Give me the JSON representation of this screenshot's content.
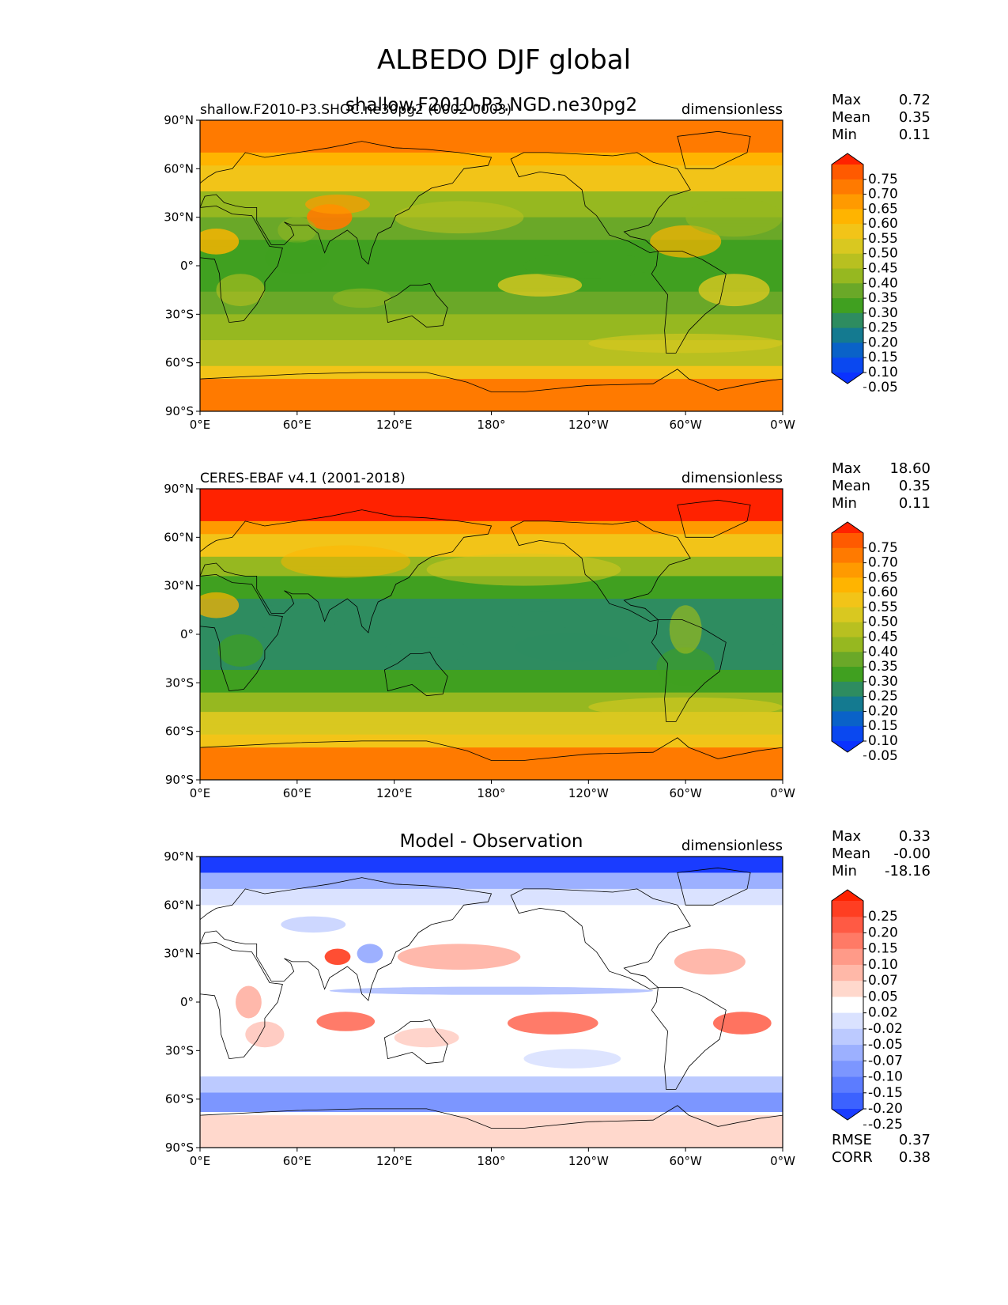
{
  "suptitle": "ALBEDO DJF global",
  "xticks": [
    "0°E",
    "60°E",
    "120°E",
    "180°",
    "120°W",
    "60°W",
    "0°W"
  ],
  "yticks": [
    "90°N",
    "60°N",
    "30°N",
    "0°",
    "30°S",
    "60°S",
    "90°S"
  ],
  "panels": [
    {
      "left_title": "shallow.F2010-P3.SHOC.ne30pg2 (0002-0003)",
      "center_title": "shallow.F2010-P3.NGD.ne30pg2",
      "right_title": "dimensionless",
      "stats": [
        {
          "label": "Max",
          "value": "0.72"
        },
        {
          "label": "Mean",
          "value": "0.35"
        },
        {
          "label": "Min",
          "value": "0.11"
        }
      ],
      "colorbar_type": "sequential",
      "colorbar_ticks": [
        "0.75",
        "0.70",
        "0.65",
        "0.60",
        "0.55",
        "0.50",
        "0.45",
        "0.40",
        "0.35",
        "0.30",
        "0.25",
        "0.20",
        "0.15",
        "0.10",
        "0.05"
      ],
      "colorbar_colors": [
        "#ff2200",
        "#ff5a00",
        "#ff7a00",
        "#ff9a00",
        "#ffb400",
        "#f2c418",
        "#d9c820",
        "#b8c020",
        "#96b820",
        "#6aa828",
        "#40a020",
        "#2e8c60",
        "#147a90",
        "#0a62c8",
        "#0a48f0",
        "#0a32ff"
      ]
    },
    {
      "left_title": "CERES-EBAF v4.1 (2001-2018)",
      "center_title": "",
      "right_title": "dimensionless",
      "stats": [
        {
          "label": "Max",
          "value": "18.60"
        },
        {
          "label": "Mean",
          "value": "0.35"
        },
        {
          "label": "Min",
          "value": "0.11"
        }
      ],
      "colorbar_type": "sequential",
      "colorbar_ticks": [
        "0.75",
        "0.70",
        "0.65",
        "0.60",
        "0.55",
        "0.50",
        "0.45",
        "0.40",
        "0.35",
        "0.30",
        "0.25",
        "0.20",
        "0.15",
        "0.10",
        "0.05"
      ],
      "colorbar_colors": [
        "#ff2200",
        "#ff5a00",
        "#ff7a00",
        "#ff9a00",
        "#ffb400",
        "#f2c418",
        "#d9c820",
        "#b8c020",
        "#96b820",
        "#6aa828",
        "#40a020",
        "#2e8c60",
        "#147a90",
        "#0a62c8",
        "#0a48f0",
        "#0a32ff"
      ]
    },
    {
      "left_title": "",
      "center_title": "Model - Observation",
      "right_title": "dimensionless",
      "stats": [
        {
          "label": "Max",
          "value": "0.33"
        },
        {
          "label": "Mean",
          "value": "-0.00"
        },
        {
          "label": "Min",
          "value": "-18.16"
        }
      ],
      "bottom_stats": [
        {
          "label": "RMSE",
          "value": "0.37"
        },
        {
          "label": "CORR",
          "value": "0.38"
        }
      ],
      "colorbar_type": "diverging",
      "colorbar_ticks": [
        "0.25",
        "0.20",
        "0.15",
        "0.10",
        "0.07",
        "0.05",
        "0.02",
        "-0.02",
        "-0.05",
        "-0.07",
        "-0.10",
        "-0.15",
        "-0.20",
        "-0.25"
      ],
      "colorbar_colors": [
        "#ff2200",
        "#ff3e22",
        "#ff5a44",
        "#ff7a66",
        "#ff9a88",
        "#ffb8a8",
        "#ffd8cc",
        "#ffffff",
        "#dae2ff",
        "#bccaff",
        "#9cb0ff",
        "#7c96ff",
        "#5c7cff",
        "#3c62ff",
        "#1a3cff"
      ]
    }
  ],
  "chart_data": [
    {
      "type": "heatmap",
      "title": "shallow.F2010-P3.NGD.ne30pg2",
      "subtitle": "shallow.F2010-P3.SHOC.ne30pg2 (0002-0003)",
      "units": "dimensionless",
      "x_range": [
        "0°E",
        "0°W"
      ],
      "y_range": [
        "90°S",
        "90°N"
      ],
      "colorbar_levels": [
        0.05,
        0.1,
        0.15,
        0.2,
        0.25,
        0.3,
        0.35,
        0.4,
        0.45,
        0.5,
        0.55,
        0.6,
        0.65,
        0.7,
        0.75
      ],
      "max": 0.72,
      "mean": 0.35,
      "min": 0.11
    },
    {
      "type": "heatmap",
      "title": "CERES-EBAF v4.1 (2001-2018)",
      "units": "dimensionless",
      "x_range": [
        "0°E",
        "0°W"
      ],
      "y_range": [
        "90°S",
        "90°N"
      ],
      "colorbar_levels": [
        0.05,
        0.1,
        0.15,
        0.2,
        0.25,
        0.3,
        0.35,
        0.4,
        0.45,
        0.5,
        0.55,
        0.6,
        0.65,
        0.7,
        0.75
      ],
      "max": 18.6,
      "mean": 0.35,
      "min": 0.11
    },
    {
      "type": "heatmap",
      "title": "Model - Observation",
      "units": "dimensionless",
      "x_range": [
        "0°E",
        "0°W"
      ],
      "y_range": [
        "90°S",
        "90°N"
      ],
      "colorbar_levels": [
        -0.25,
        -0.2,
        -0.15,
        -0.1,
        -0.07,
        -0.05,
        -0.02,
        0.02,
        0.05,
        0.07,
        0.1,
        0.15,
        0.2,
        0.25
      ],
      "max": 0.33,
      "mean": -0.0,
      "min": -18.16,
      "rmse": 0.37,
      "corr": 0.38
    }
  ]
}
